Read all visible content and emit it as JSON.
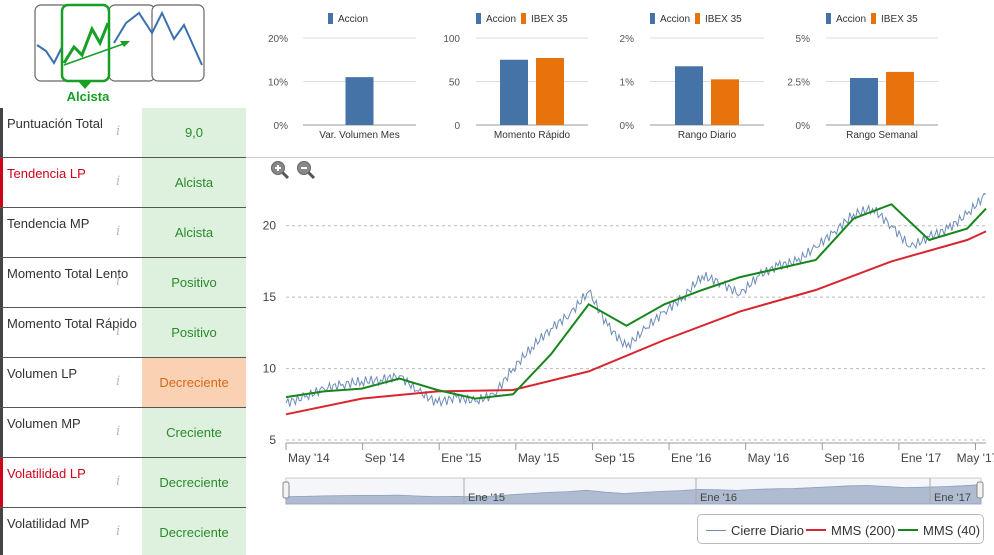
{
  "trend": {
    "label": "Alcista",
    "icon": "trend-selector-icon",
    "color": "#17a025"
  },
  "rows": [
    {
      "label": "Puntuación Total",
      "value": "9,0",
      "label_color": "default",
      "value_style": "green"
    },
    {
      "label": "Tendencia LP",
      "value": "Alcista",
      "label_color": "red",
      "value_style": "green"
    },
    {
      "label": "Tendencia MP",
      "value": "Alcista",
      "label_color": "default",
      "value_style": "green"
    },
    {
      "label": "Momento Total Lento",
      "value": "Positivo",
      "label_color": "default",
      "value_style": "green"
    },
    {
      "label": "Momento Total Rápido",
      "value": "Positivo",
      "label_color": "default",
      "value_style": "green"
    },
    {
      "label": "Volumen LP",
      "value": "Decreciente",
      "label_color": "default",
      "value_style": "orange"
    },
    {
      "label": "Volumen MP",
      "value": "Creciente",
      "label_color": "default",
      "value_style": "green"
    },
    {
      "label": "Volatilidad LP",
      "value": "Decreciente",
      "label_color": "red",
      "value_style": "green"
    },
    {
      "label": "Volatilidad MP",
      "value": "Decreciente",
      "label_color": "default",
      "value_style": "green"
    }
  ],
  "info_icon": "i",
  "colors": {
    "accion": "#4572a7",
    "ibex": "#e8720c",
    "mms200": "#d9262e",
    "mms40": "#17861d",
    "cierre": "#6d8cb8",
    "green_cell": "#def1de",
    "orange_cell": "#fad2b3"
  },
  "chart_data": [
    {
      "type": "bar",
      "title": "Var. Volumen Mes",
      "series": [
        {
          "name": "Accion",
          "values": [
            11
          ]
        }
      ],
      "yticks": [
        "20%",
        "10%",
        "0%"
      ],
      "ylim": [
        0,
        20
      ]
    },
    {
      "type": "bar",
      "title": "Momento Rápido",
      "series": [
        {
          "name": "Accion",
          "values": [
            75
          ]
        },
        {
          "name": "IBEX 35",
          "values": [
            77
          ]
        }
      ],
      "yticks": [
        "100",
        "50",
        "0"
      ],
      "ylim": [
        0,
        100
      ]
    },
    {
      "type": "bar",
      "title": "Rango Diario",
      "series": [
        {
          "name": "Accion",
          "values": [
            1.35
          ]
        },
        {
          "name": "IBEX 35",
          "values": [
            1.05
          ]
        }
      ],
      "yticks": [
        "2%",
        "1%",
        "0%"
      ],
      "ylim": [
        0,
        2
      ]
    },
    {
      "type": "bar",
      "title": "Rango Semanal",
      "series": [
        {
          "name": "Accion",
          "values": [
            2.7
          ]
        },
        {
          "name": "IBEX 35",
          "values": [
            3.05
          ]
        }
      ],
      "yticks": [
        "5%",
        "2.5%",
        "0%"
      ],
      "ylim": [
        0,
        5
      ]
    },
    {
      "type": "line",
      "x_ticks": [
        "May '14",
        "Sep '14",
        "Ene '15",
        "May '15",
        "Sep '15",
        "Ene '16",
        "May '16",
        "Sep '16",
        "Ene '17",
        "May '17"
      ],
      "y_ticks": [
        "5",
        "10",
        "15",
        "20"
      ],
      "ylim": [
        5,
        22.5
      ],
      "grid": true,
      "navigator_ticks": [
        "Ene '15",
        "Ene '16",
        "Ene '17"
      ],
      "series": [
        {
          "name": "Cierre Diario",
          "x_months": [
            0,
            1,
            2,
            3,
            4,
            5,
            6,
            7,
            8,
            9,
            10,
            11,
            12,
            13,
            14,
            15,
            16,
            17,
            18,
            19,
            20,
            21,
            22,
            23,
            24,
            25,
            26,
            27,
            28,
            29,
            30,
            31,
            32,
            33,
            34,
            35,
            36,
            37
          ],
          "values": [
            7.6,
            8.0,
            8.6,
            8.9,
            9.1,
            9.2,
            9.5,
            8.4,
            7.6,
            8.0,
            7.7,
            8.2,
            10.0,
            11.5,
            12.8,
            13.8,
            15.4,
            13.0,
            11.5,
            12.8,
            14.0,
            15.0,
            16.5,
            16.0,
            15.2,
            16.5,
            17.2,
            17.5,
            18.5,
            19.6,
            20.8,
            21.2,
            20.0,
            18.5,
            19.2,
            19.8,
            20.8,
            22.2
          ]
        },
        {
          "name": "MMS (200)",
          "x_months": [
            0,
            4,
            8,
            12,
            16,
            20,
            24,
            28,
            32,
            36,
            37
          ],
          "values": [
            6.8,
            7.9,
            8.4,
            8.5,
            9.8,
            12.0,
            14.0,
            15.5,
            17.5,
            19.0,
            19.6
          ]
        },
        {
          "name": "MMS (40)",
          "x_months": [
            0,
            2,
            4,
            6,
            8,
            10,
            12,
            14,
            16,
            18,
            20,
            22,
            24,
            26,
            28,
            30,
            32,
            34,
            36,
            37
          ],
          "values": [
            8.0,
            8.4,
            8.6,
            9.3,
            8.5,
            7.9,
            8.2,
            11.0,
            14.5,
            13.0,
            14.5,
            15.5,
            16.4,
            17.0,
            17.6,
            20.5,
            21.5,
            19.0,
            19.8,
            21.2
          ]
        }
      ]
    }
  ],
  "legend": {
    "cierre": "Cierre Diario",
    "mms200": "MMS (200)",
    "mms40": "MMS (40)"
  },
  "top_legend": {
    "accion": "Accion",
    "ibex": "IBEX 35"
  },
  "zoom": {
    "in_icon": "zoom-in-icon",
    "out_icon": "zoom-out-icon"
  }
}
